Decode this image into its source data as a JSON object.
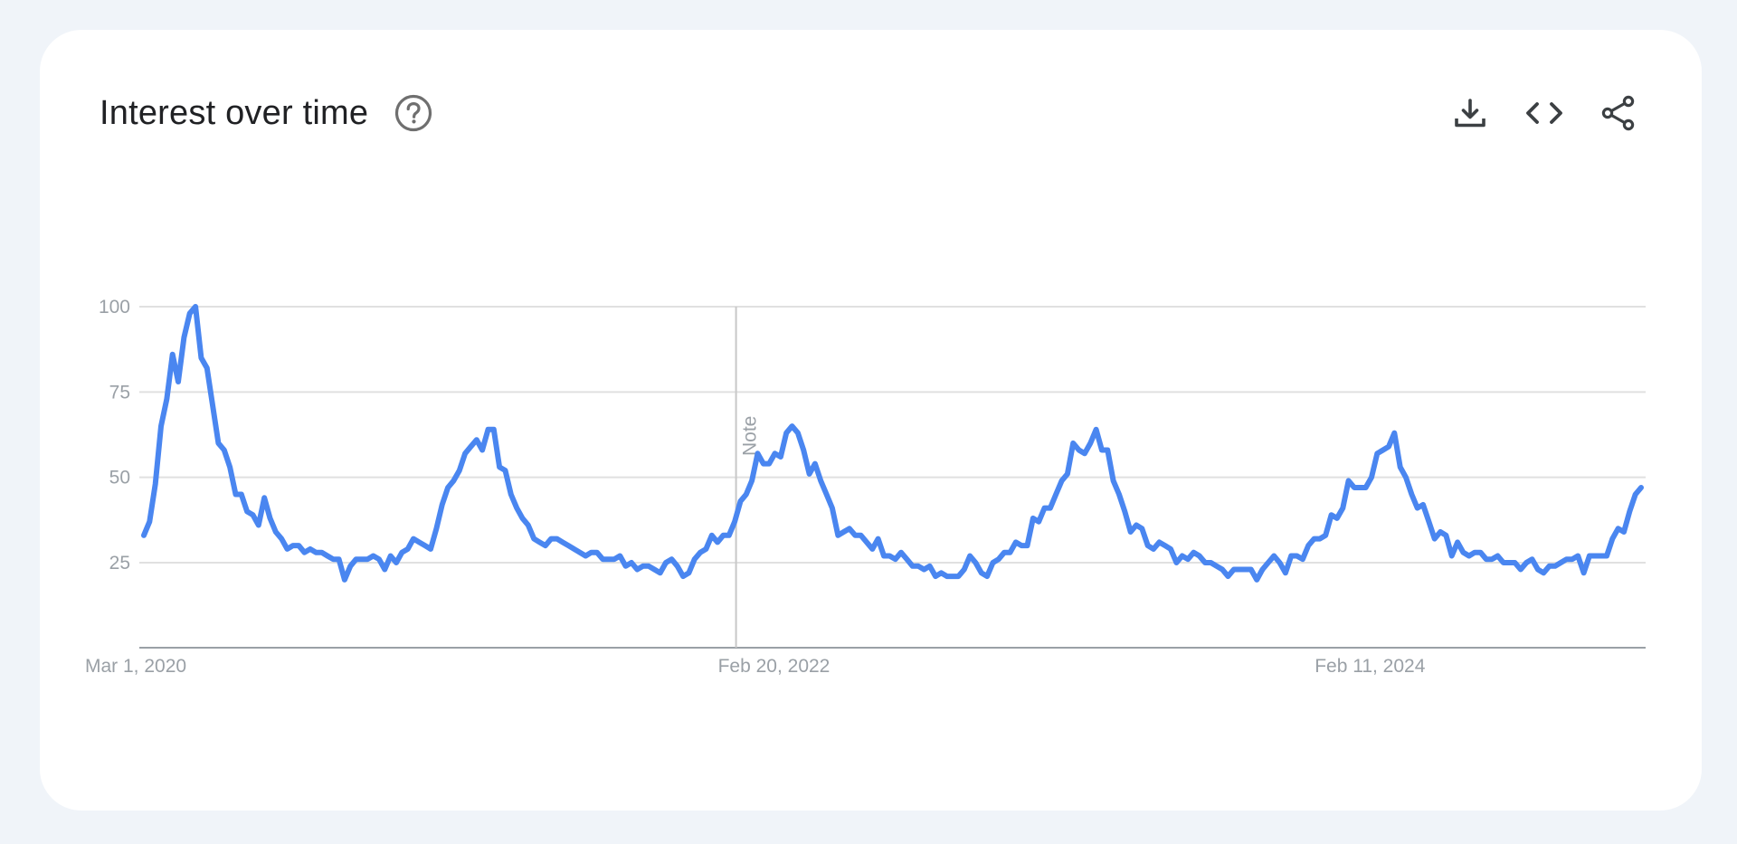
{
  "card": {
    "title": "Interest over time",
    "help_icon": "help-circle-icon",
    "actions": [
      {
        "name": "download-icon"
      },
      {
        "name": "embed-code-icon"
      },
      {
        "name": "share-icon"
      }
    ]
  },
  "colors": {
    "line": "#4a86f0",
    "grid": "#e0e0e0",
    "axis": "#9aa0a6",
    "background": "#f0f4f9",
    "card": "#ffffff"
  },
  "chart_data": {
    "type": "line",
    "title": "Interest over time",
    "xlabel": "",
    "ylabel": "",
    "ylim": [
      0,
      100
    ],
    "yticks": [
      25,
      50,
      75,
      100
    ],
    "grid": true,
    "x_start": "Mar 1, 2020",
    "x_end": "Feb 23, 2025",
    "x_ticks": [
      "Mar 1, 2020",
      "Feb 20, 2022",
      "Feb 11, 2024"
    ],
    "annotation": {
      "label": "Note",
      "x": "Feb 20, 2022"
    },
    "series": [
      {
        "values": [
          33,
          37,
          48,
          65,
          73,
          86,
          78,
          91,
          98,
          100,
          85,
          82,
          71,
          60,
          58,
          53,
          45,
          45,
          40,
          39,
          36,
          44,
          38,
          34,
          32,
          29,
          30,
          30,
          28,
          29,
          28,
          28,
          27,
          26,
          26,
          20,
          24,
          26,
          26,
          26,
          27,
          26,
          23,
          27,
          25,
          28,
          29,
          32,
          31,
          30,
          29,
          35,
          42,
          47,
          49,
          52,
          57,
          59,
          61,
          58,
          64,
          64,
          53,
          52,
          45,
          41,
          38,
          36,
          32,
          31,
          30,
          32,
          32,
          31,
          30,
          29,
          28,
          27,
          28,
          28,
          26,
          26,
          26,
          27,
          24,
          25,
          23,
          24,
          24,
          23,
          22,
          25,
          26,
          24,
          21,
          22,
          26,
          28,
          29,
          33,
          31,
          33,
          33,
          37,
          43,
          45,
          49,
          57,
          54,
          54,
          57,
          56,
          63,
          65,
          63,
          58,
          51,
          54,
          49,
          45,
          41,
          33,
          34,
          35,
          33,
          33,
          31,
          29,
          32,
          27,
          27,
          26,
          28,
          26,
          24,
          24,
          23,
          24,
          21,
          22,
          21,
          21,
          21,
          23,
          27,
          25,
          22,
          21,
          25,
          26,
          28,
          28,
          31,
          30,
          30,
          38,
          37,
          41,
          41,
          45,
          49,
          51,
          60,
          58,
          57,
          60,
          64,
          58,
          58,
          49,
          45,
          40,
          34,
          36,
          35,
          30,
          29,
          31,
          30,
          29,
          25,
          27,
          26,
          28,
          27,
          25,
          25,
          24,
          23,
          21,
          23,
          23,
          23,
          23,
          20,
          23,
          25,
          27,
          25,
          22,
          27,
          27,
          26,
          30,
          32,
          32,
          33,
          39,
          38,
          41,
          49,
          47,
          47,
          47,
          50,
          57,
          58,
          59,
          63,
          53,
          50,
          45,
          41,
          42,
          37,
          32,
          34,
          33,
          27,
          31,
          28,
          27,
          28,
          28,
          26,
          26,
          27,
          25,
          25,
          25,
          23,
          25,
          26,
          23,
          22,
          24,
          24,
          25,
          26,
          26,
          27,
          22,
          27,
          27,
          27,
          27,
          32,
          35,
          34,
          40,
          45,
          47
        ]
      }
    ]
  }
}
